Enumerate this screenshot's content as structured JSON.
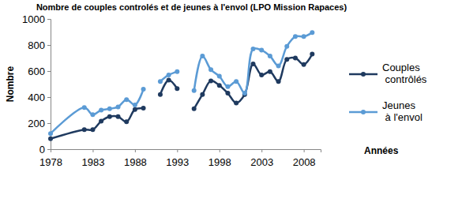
{
  "chart_data": {
    "type": "line",
    "title": "Nombre de couples controlés et de jeunes à l'envol (LPO Mission Rapaces)",
    "x_label": "Années",
    "y_label": "Nombre",
    "x": [
      1978,
      1982,
      1983,
      1984,
      1985,
      1986,
      1987,
      1988,
      1989,
      1990,
      1991,
      1992,
      1993,
      1994,
      1995,
      1996,
      1997,
      1998,
      1999,
      2000,
      2001,
      2002,
      2003,
      2004,
      2005,
      2006,
      2007,
      2008,
      2009
    ],
    "series": [
      {
        "name": "Couples contrôlés",
        "color": "#1f3a5f",
        "marker": "circle",
        "values": [
          80,
          150,
          150,
          215,
          250,
          250,
          210,
          305,
          315,
          null,
          420,
          530,
          465,
          null,
          310,
          420,
          525,
          490,
          430,
          355,
          420,
          655,
          570,
          595,
          520,
          690,
          700,
          650,
          730
        ]
      },
      {
        "name": "Jeunes à l'envol",
        "color": "#5b9bd5",
        "marker": "circle",
        "values": [
          120,
          320,
          265,
          300,
          310,
          325,
          380,
          340,
          460,
          null,
          520,
          570,
          595,
          null,
          450,
          715,
          610,
          560,
          480,
          520,
          430,
          770,
          760,
          715,
          640,
          790,
          865,
          865,
          895
        ]
      }
    ],
    "xlim": [
      1978,
      2010
    ],
    "xticks": [
      1978,
      1983,
      1988,
      1993,
      1998,
      2003,
      2008
    ],
    "ylim": [
      0,
      1000
    ],
    "yticks": [
      0,
      200,
      400,
      600,
      800,
      1000
    ],
    "grid": false,
    "legend": "right"
  }
}
